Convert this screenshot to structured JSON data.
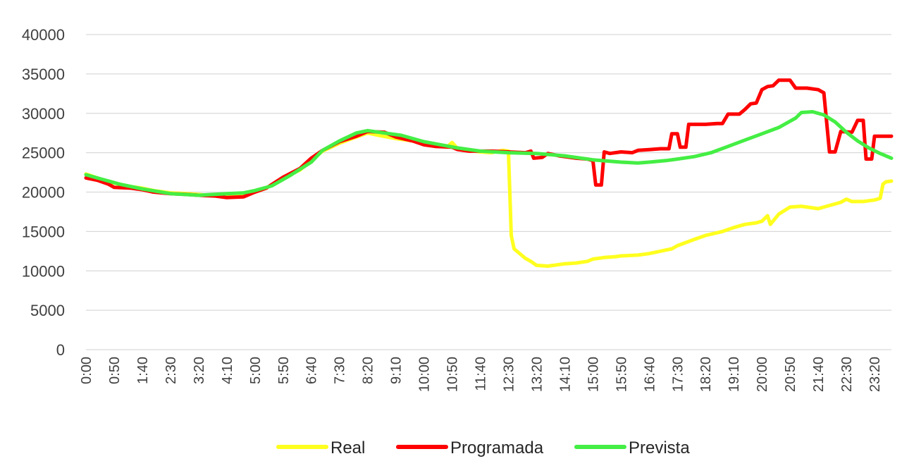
{
  "chart_data": {
    "type": "line",
    "title": "",
    "xlabel": "",
    "ylabel": "",
    "ylim": [
      0,
      40000
    ],
    "yticks": [
      0,
      5000,
      10000,
      15000,
      20000,
      25000,
      30000,
      35000,
      40000
    ],
    "xlim": [
      "0:00",
      "23:50"
    ],
    "xticks": [
      "0:00",
      "0:50",
      "1:40",
      "2:30",
      "3:20",
      "4:10",
      "5:00",
      "5:50",
      "6:40",
      "7:30",
      "8:20",
      "9:10",
      "10:00",
      "10:50",
      "11:40",
      "12:30",
      "13:20",
      "14:10",
      "15:00",
      "15:50",
      "16:40",
      "17:30",
      "18:20",
      "19:10",
      "20:00",
      "20:50",
      "21:40",
      "22:30",
      "23:20"
    ],
    "grid": true,
    "legend": "bottom",
    "series": [
      {
        "name": "Real",
        "color": "#ffff1f",
        "points": [
          [
            "0:00",
            22300
          ],
          [
            "0:20",
            21800
          ],
          [
            "0:40",
            21300
          ],
          [
            "1:00",
            21000
          ],
          [
            "1:20",
            20700
          ],
          [
            "1:40",
            20500
          ],
          [
            "2:00",
            20200
          ],
          [
            "2:30",
            19900
          ],
          [
            "3:00",
            19800
          ],
          [
            "3:20",
            19700
          ],
          [
            "3:50",
            19500
          ],
          [
            "4:10",
            19600
          ],
          [
            "4:40",
            19700
          ],
          [
            "5:00",
            20000
          ],
          [
            "5:20",
            20500
          ],
          [
            "5:50",
            21800
          ],
          [
            "6:20",
            22800
          ],
          [
            "6:40",
            24000
          ],
          [
            "7:00",
            25200
          ],
          [
            "7:30",
            26200
          ],
          [
            "8:00",
            27000
          ],
          [
            "8:20",
            27500
          ],
          [
            "8:40",
            27200
          ],
          [
            "9:10",
            26800
          ],
          [
            "9:40",
            26500
          ],
          [
            "10:00",
            26300
          ],
          [
            "10:20",
            26000
          ],
          [
            "10:40",
            25700
          ],
          [
            "10:50",
            26300
          ],
          [
            "11:00",
            25500
          ],
          [
            "11:20",
            25300
          ],
          [
            "11:40",
            25100
          ],
          [
            "12:00",
            25000
          ],
          [
            "12:20",
            25300
          ],
          [
            "12:30",
            25200
          ],
          [
            "12:35",
            14500
          ],
          [
            "12:40",
            12800
          ],
          [
            "13:00",
            11600
          ],
          [
            "13:10",
            11200
          ],
          [
            "13:20",
            10700
          ],
          [
            "13:40",
            10600
          ],
          [
            "14:00",
            10800
          ],
          [
            "14:10",
            10900
          ],
          [
            "14:30",
            11000
          ],
          [
            "14:50",
            11200
          ],
          [
            "15:00",
            11500
          ],
          [
            "15:20",
            11700
          ],
          [
            "15:40",
            11800
          ],
          [
            "15:50",
            11900
          ],
          [
            "16:20",
            12000
          ],
          [
            "16:40",
            12200
          ],
          [
            "17:00",
            12500
          ],
          [
            "17:20",
            12800
          ],
          [
            "17:30",
            13200
          ],
          [
            "18:00",
            14000
          ],
          [
            "18:20",
            14500
          ],
          [
            "18:50",
            15000
          ],
          [
            "19:10",
            15500
          ],
          [
            "19:30",
            15900
          ],
          [
            "19:50",
            16100
          ],
          [
            "20:00",
            16300
          ],
          [
            "20:10",
            17000
          ],
          [
            "20:15",
            15900
          ],
          [
            "20:30",
            17200
          ],
          [
            "20:50",
            18100
          ],
          [
            "21:10",
            18200
          ],
          [
            "21:30",
            18000
          ],
          [
            "21:40",
            17900
          ],
          [
            "22:00",
            18300
          ],
          [
            "22:20",
            18700
          ],
          [
            "22:30",
            19100
          ],
          [
            "22:40",
            18800
          ],
          [
            "23:00",
            18800
          ],
          [
            "23:20",
            19000
          ],
          [
            "23:30",
            19200
          ],
          [
            "23:35",
            21000
          ],
          [
            "23:40",
            21300
          ],
          [
            "23:50",
            21400
          ]
        ]
      },
      {
        "name": "Programada",
        "color": "#ff0000",
        "points": [
          [
            "0:00",
            21800
          ],
          [
            "0:20",
            21500
          ],
          [
            "0:40",
            21000
          ],
          [
            "0:50",
            20600
          ],
          [
            "1:20",
            20500
          ],
          [
            "1:40",
            20300
          ],
          [
            "2:00",
            20000
          ],
          [
            "2:30",
            19800
          ],
          [
            "3:00",
            19700
          ],
          [
            "3:20",
            19600
          ],
          [
            "3:50",
            19500
          ],
          [
            "4:10",
            19300
          ],
          [
            "4:40",
            19400
          ],
          [
            "5:00",
            20000
          ],
          [
            "5:20",
            20500
          ],
          [
            "5:50",
            21900
          ],
          [
            "6:20",
            23000
          ],
          [
            "6:40",
            24300
          ],
          [
            "7:00",
            25300
          ],
          [
            "7:30",
            26400
          ],
          [
            "8:00",
            27100
          ],
          [
            "8:20",
            27700
          ],
          [
            "8:50",
            27600
          ],
          [
            "9:10",
            27000
          ],
          [
            "9:40",
            26500
          ],
          [
            "10:00",
            26000
          ],
          [
            "10:20",
            25800
          ],
          [
            "10:50",
            25700
          ],
          [
            "11:00",
            25400
          ],
          [
            "11:20",
            25200
          ],
          [
            "11:40",
            25200
          ],
          [
            "12:00",
            25200
          ],
          [
            "12:30",
            25100
          ],
          [
            "13:00",
            25000
          ],
          [
            "13:10",
            25200
          ],
          [
            "13:15",
            24300
          ],
          [
            "13:30",
            24400
          ],
          [
            "13:40",
            24900
          ],
          [
            "14:00",
            24600
          ],
          [
            "14:10",
            24500
          ],
          [
            "14:30",
            24300
          ],
          [
            "14:50",
            24200
          ],
          [
            "15:00",
            24000
          ],
          [
            "15:05",
            20900
          ],
          [
            "15:15",
            20900
          ],
          [
            "15:20",
            25100
          ],
          [
            "15:30",
            24900
          ],
          [
            "15:50",
            25100
          ],
          [
            "16:10",
            25000
          ],
          [
            "16:20",
            25300
          ],
          [
            "16:40",
            25400
          ],
          [
            "17:00",
            25500
          ],
          [
            "17:15",
            25500
          ],
          [
            "17:20",
            27400
          ],
          [
            "17:30",
            27400
          ],
          [
            "17:35",
            25700
          ],
          [
            "17:45",
            25700
          ],
          [
            "17:50",
            28600
          ],
          [
            "18:20",
            28600
          ],
          [
            "18:40",
            28700
          ],
          [
            "18:50",
            28700
          ],
          [
            "19:00",
            29900
          ],
          [
            "19:20",
            29900
          ],
          [
            "19:30",
            30500
          ],
          [
            "19:40",
            31200
          ],
          [
            "19:50",
            31300
          ],
          [
            "20:00",
            33000
          ],
          [
            "20:10",
            33400
          ],
          [
            "20:20",
            33500
          ],
          [
            "20:30",
            34200
          ],
          [
            "20:50",
            34200
          ],
          [
            "21:00",
            33200
          ],
          [
            "21:20",
            33200
          ],
          [
            "21:40",
            33000
          ],
          [
            "21:50",
            32600
          ],
          [
            "22:00",
            25100
          ],
          [
            "22:10",
            25100
          ],
          [
            "22:20",
            27700
          ],
          [
            "22:40",
            27600
          ],
          [
            "22:50",
            29100
          ],
          [
            "23:00",
            29100
          ],
          [
            "23:05",
            24200
          ],
          [
            "23:15",
            24200
          ],
          [
            "23:20",
            27100
          ],
          [
            "23:50",
            27100
          ]
        ]
      },
      {
        "name": "Prevista",
        "color": "#44ee44",
        "points": [
          [
            "0:00",
            22200
          ],
          [
            "0:30",
            21600
          ],
          [
            "1:00",
            21000
          ],
          [
            "1:40",
            20400
          ],
          [
            "2:30",
            19800
          ],
          [
            "3:20",
            19600
          ],
          [
            "4:10",
            19800
          ],
          [
            "4:40",
            19900
          ],
          [
            "5:00",
            20200
          ],
          [
            "5:30",
            20800
          ],
          [
            "6:00",
            22000
          ],
          [
            "6:40",
            23800
          ],
          [
            "7:00",
            25300
          ],
          [
            "7:30",
            26500
          ],
          [
            "8:00",
            27500
          ],
          [
            "8:20",
            27800
          ],
          [
            "8:50",
            27500
          ],
          [
            "9:20",
            27200
          ],
          [
            "9:40",
            26800
          ],
          [
            "10:00",
            26400
          ],
          [
            "10:30",
            26000
          ],
          [
            "11:00",
            25600
          ],
          [
            "11:40",
            25200
          ],
          [
            "12:30",
            25000
          ],
          [
            "13:20",
            24900
          ],
          [
            "14:10",
            24600
          ],
          [
            "15:00",
            24100
          ],
          [
            "15:50",
            23800
          ],
          [
            "16:20",
            23700
          ],
          [
            "16:40",
            23800
          ],
          [
            "17:10",
            24000
          ],
          [
            "17:30",
            24200
          ],
          [
            "18:00",
            24500
          ],
          [
            "18:30",
            25000
          ],
          [
            "19:00",
            25800
          ],
          [
            "19:30",
            26600
          ],
          [
            "20:00",
            27400
          ],
          [
            "20:30",
            28200
          ],
          [
            "20:50",
            29000
          ],
          [
            "21:00",
            29400
          ],
          [
            "21:10",
            30100
          ],
          [
            "21:30",
            30200
          ],
          [
            "21:50",
            29800
          ],
          [
            "22:10",
            28900
          ],
          [
            "22:30",
            27600
          ],
          [
            "22:50",
            26500
          ],
          [
            "23:10",
            25600
          ],
          [
            "23:30",
            24900
          ],
          [
            "23:50",
            24300
          ]
        ]
      }
    ]
  }
}
